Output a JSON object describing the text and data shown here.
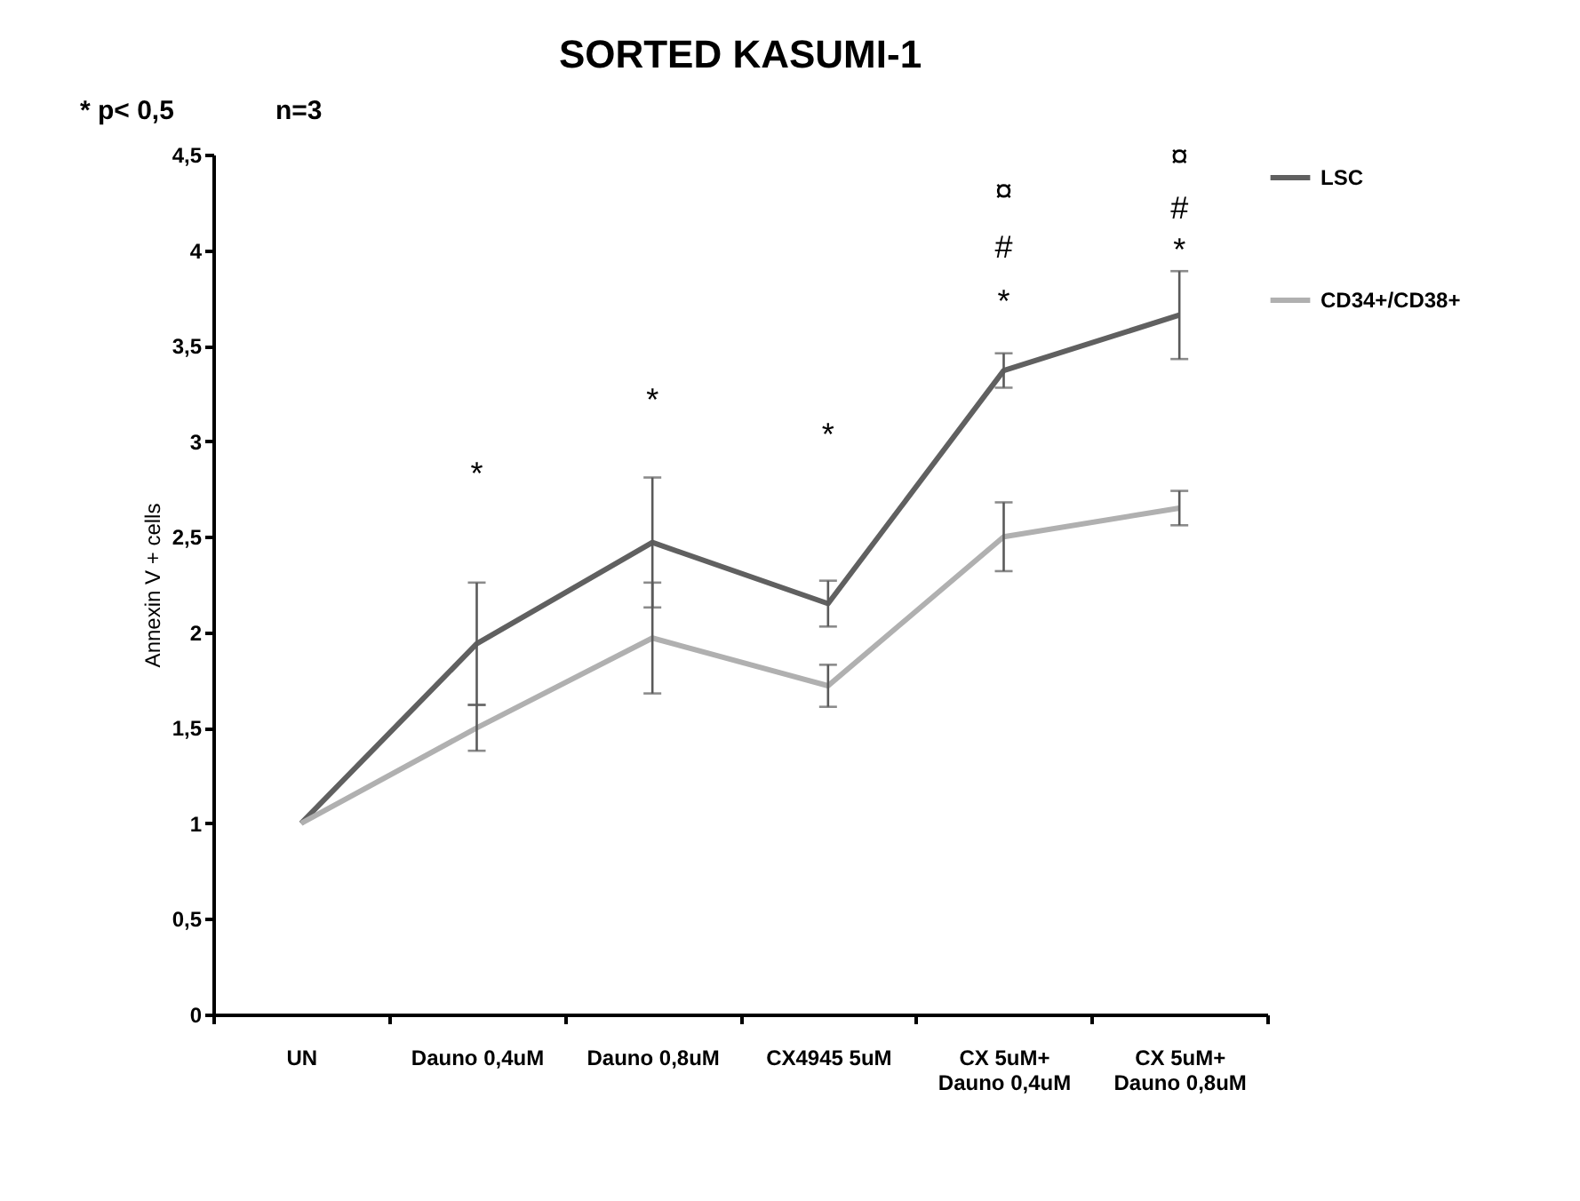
{
  "chart_data": {
    "type": "line",
    "title": "SORTED KASUMI-1",
    "ylabel": "Annexin V + cells",
    "categories": [
      "UN",
      "Dauno 0,4uM",
      "Dauno 0,8uM",
      "CX4945 5uM",
      "CX 5uM+ Dauno 0,4uM",
      "CX 5uM+ Dauno 0,8uM"
    ],
    "series": [
      {
        "name": "LSC",
        "color": "#606060",
        "values": [
          1,
          1.94,
          2.47,
          2.15,
          3.37,
          3.66
        ],
        "errors": [
          null,
          0.32,
          0.34,
          0.12,
          0.09,
          0.23
        ]
      },
      {
        "name": "CD34+/CD38+",
        "color": "#b0b0b0",
        "values": [
          1,
          1.5,
          1.97,
          1.72,
          2.5,
          2.65
        ],
        "errors": [
          null,
          0.12,
          0.29,
          0.11,
          0.18,
          0.09
        ]
      }
    ],
    "ylim": [
      0,
      4.5
    ],
    "yticks": [
      0,
      {
        "value": 0.5,
        "label": "0,5"
      },
      1,
      {
        "value": 1.5,
        "label": "1,5"
      },
      2,
      {
        "value": 2.5,
        "label": "2,5"
      },
      3,
      {
        "value": 3.5,
        "label": "3,5"
      },
      4,
      {
        "value": 4.5,
        "label": "4,5"
      }
    ],
    "grid": false,
    "legend": "right",
    "marker": "none",
    "line_style": "solid",
    "annotations": [
      "* p< 0,5",
      "n=3",
      "*",
      "*",
      "*",
      "*",
      "#",
      "¤",
      "*",
      "#",
      "¤"
    ]
  }
}
